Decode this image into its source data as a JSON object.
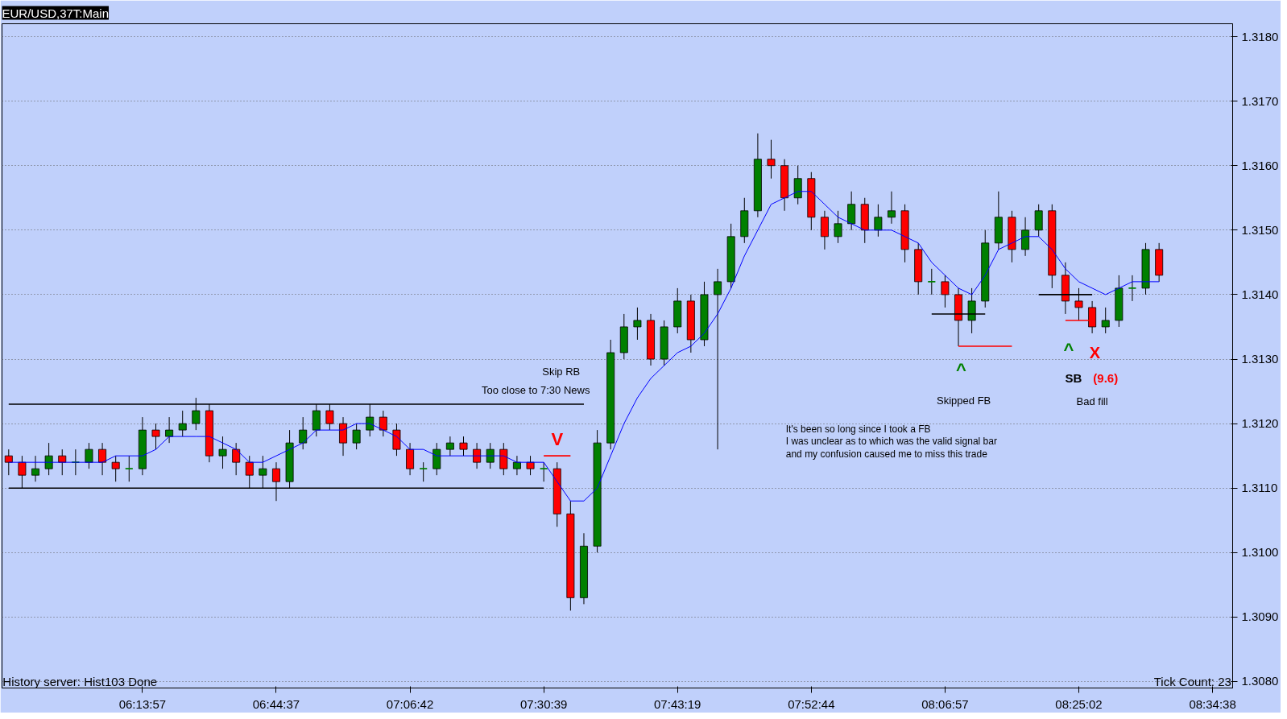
{
  "chart_data": {
    "type": "candlestick",
    "title": "EUR/USD,37T:Main",
    "ylim": [
      1.3079,
      1.3182
    ],
    "yticks": [
      {
        "value": 1.308,
        "label": "1.3080"
      },
      {
        "value": 1.309,
        "label": "1.3090"
      },
      {
        "value": 1.31,
        "label": "1.3100"
      },
      {
        "value": 1.311,
        "label": "1.3110"
      },
      {
        "value": 1.312,
        "label": "1.3120"
      },
      {
        "value": 1.313,
        "label": "1.3130"
      },
      {
        "value": 1.314,
        "label": "1.3140"
      },
      {
        "value": 1.315,
        "label": "1.3150"
      },
      {
        "value": 1.316,
        "label": "1.3160"
      },
      {
        "value": 1.317,
        "label": "1.3170"
      },
      {
        "value": 1.318,
        "label": "1.3180"
      }
    ],
    "grid": "y",
    "categories": [
      null,
      null,
      null,
      null,
      null,
      null,
      null,
      null,
      null,
      null,
      "06:13:57",
      null,
      null,
      null,
      null,
      null,
      null,
      null,
      null,
      null,
      "06:44:37",
      null,
      null,
      null,
      null,
      null,
      null,
      null,
      null,
      null,
      "07:06:42",
      null,
      null,
      null,
      null,
      null,
      null,
      null,
      null,
      null,
      "07:30:39",
      null,
      null,
      null,
      null,
      null,
      null,
      null,
      null,
      null,
      "07:43:19",
      null,
      null,
      null,
      null,
      null,
      null,
      null,
      null,
      null,
      "07:52:44",
      null,
      null,
      null,
      null,
      null,
      null,
      null,
      null,
      null,
      "08:06:57",
      null,
      null,
      null,
      null,
      null,
      null,
      null,
      null,
      null,
      "08:25:02",
      null,
      null,
      null,
      null,
      null,
      null,
      null,
      null,
      null,
      "08:34:38",
      null
    ],
    "colors": [
      "#ff0000",
      "#ff0000",
      "#008000",
      "#008000",
      "#ff0000",
      "#008000",
      "#008000",
      "#ff0000",
      "#ff0000",
      "#008000",
      "#008000",
      "#ff0000",
      "#008000",
      "#008000",
      "#008000",
      "#ff0000",
      "#008000",
      "#ff0000",
      "#ff0000",
      "#008000",
      "#ff0000",
      "#008000",
      "#008000",
      "#008000",
      "#ff0000",
      "#ff0000",
      "#008000",
      "#008000",
      "#ff0000",
      "#ff0000",
      "#ff0000",
      "#008000",
      "#008000",
      "#008000",
      "#ff0000",
      "#ff0000",
      "#008000",
      "#ff0000",
      "#008000",
      "#ff0000",
      "#008000",
      "#ff0000",
      "#ff0000",
      "#008000",
      "#008000",
      "#008000",
      "#008000",
      "#008000",
      "#ff0000",
      "#008000",
      "#008000",
      "#ff0000",
      "#008000",
      "#008000",
      "#008000",
      "#008000",
      "#008000",
      "#ff0000",
      "#ff0000",
      "#008000",
      "#ff0000",
      "#ff0000",
      "#008000",
      "#008000",
      "#ff0000",
      "#008000",
      "#008000",
      "#ff0000",
      "#ff0000",
      "#008000",
      "#ff0000",
      "#ff0000",
      "#008000",
      "#008000",
      "#008000",
      "#ff0000",
      "#008000",
      "#008000",
      "#ff0000",
      "#ff0000",
      "#ff0000",
      "#ff0000",
      "#008000",
      "#008000",
      "#008000",
      "#008000",
      "#ff0000",
      null,
      null,
      null,
      null,
      null
    ],
    "ohlc": [
      [
        1.3115,
        1.3116,
        1.3112,
        1.3114
      ],
      [
        1.3114,
        1.3115,
        1.311,
        1.3112
      ],
      [
        1.3112,
        1.3115,
        1.3111,
        1.3113
      ],
      [
        1.3113,
        1.3117,
        1.3112,
        1.3115
      ],
      [
        1.3115,
        1.3116,
        1.3112,
        1.3114
      ],
      [
        1.3114,
        1.3116,
        1.3112,
        1.3114
      ],
      [
        1.3114,
        1.3117,
        1.3113,
        1.3116
      ],
      [
        1.3116,
        1.3117,
        1.3112,
        1.3114
      ],
      [
        1.3114,
        1.3115,
        1.3111,
        1.3113
      ],
      [
        1.3113,
        1.3115,
        1.3111,
        1.3113
      ],
      [
        1.3113,
        1.3121,
        1.3112,
        1.3119
      ],
      [
        1.3119,
        1.312,
        1.3116,
        1.3118
      ],
      [
        1.3118,
        1.3121,
        1.3117,
        1.3119
      ],
      [
        1.3119,
        1.3122,
        1.3118,
        1.312
      ],
      [
        1.312,
        1.3124,
        1.3119,
        1.3122
      ],
      [
        1.3122,
        1.3123,
        1.3114,
        1.3115
      ],
      [
        1.3115,
        1.3118,
        1.3113,
        1.3116
      ],
      [
        1.3116,
        1.3117,
        1.3112,
        1.3114
      ],
      [
        1.3114,
        1.3115,
        1.311,
        1.3112
      ],
      [
        1.3112,
        1.3115,
        1.311,
        1.3113
      ],
      [
        1.3113,
        1.3114,
        1.3108,
        1.3111
      ],
      [
        1.3111,
        1.3119,
        1.311,
        1.3117
      ],
      [
        1.3117,
        1.3121,
        1.3116,
        1.3119
      ],
      [
        1.3119,
        1.3123,
        1.3118,
        1.3122
      ],
      [
        1.3122,
        1.3123,
        1.3119,
        1.312
      ],
      [
        1.312,
        1.3121,
        1.3115,
        1.3117
      ],
      [
        1.3117,
        1.312,
        1.3116,
        1.3119
      ],
      [
        1.3119,
        1.3123,
        1.3118,
        1.3121
      ],
      [
        1.3121,
        1.3122,
        1.3118,
        1.3119
      ],
      [
        1.3119,
        1.312,
        1.3115,
        1.3116
      ],
      [
        1.3116,
        1.3117,
        1.3112,
        1.3113
      ],
      [
        1.3113,
        1.3114,
        1.3111,
        1.3113
      ],
      [
        1.3113,
        1.3117,
        1.3112,
        1.3116
      ],
      [
        1.3116,
        1.3118,
        1.3115,
        1.3117
      ],
      [
        1.3117,
        1.3118,
        1.3115,
        1.3116
      ],
      [
        1.3116,
        1.3117,
        1.3113,
        1.3114
      ],
      [
        1.3114,
        1.3117,
        1.3113,
        1.3116
      ],
      [
        1.3116,
        1.3117,
        1.3112,
        1.3113
      ],
      [
        1.3113,
        1.3115,
        1.3112,
        1.3114
      ],
      [
        1.3114,
        1.3115,
        1.3112,
        1.3113
      ],
      [
        1.3113,
        1.3114,
        1.3111,
        1.3113
      ],
      [
        1.3113,
        1.3114,
        1.3104,
        1.3106
      ],
      [
        1.3106,
        1.3108,
        1.3091,
        1.3093
      ],
      [
        1.3093,
        1.3103,
        1.3092,
        1.3101
      ],
      [
        1.3101,
        1.3119,
        1.31,
        1.3117
      ],
      [
        1.3117,
        1.3133,
        1.3116,
        1.3131
      ],
      [
        1.3131,
        1.3137,
        1.313,
        1.3135
      ],
      [
        1.3135,
        1.3138,
        1.3133,
        1.3136
      ],
      [
        1.3136,
        1.3137,
        1.3129,
        1.313
      ],
      [
        1.313,
        1.3136,
        1.3129,
        1.3135
      ],
      [
        1.3135,
        1.3141,
        1.3134,
        1.3139
      ],
      [
        1.3139,
        1.314,
        1.3131,
        1.3133
      ],
      [
        1.3133,
        1.3142,
        1.3132,
        1.314
      ],
      [
        1.314,
        1.3144,
        1.3116,
        1.3142
      ],
      [
        1.3142,
        1.3151,
        1.3141,
        1.3149
      ],
      [
        1.3149,
        1.3155,
        1.3148,
        1.3153
      ],
      [
        1.3153,
        1.3165,
        1.3152,
        1.3161
      ],
      [
        1.3161,
        1.3164,
        1.3158,
        1.316
      ],
      [
        1.316,
        1.3161,
        1.3153,
        1.3155
      ],
      [
        1.3155,
        1.316,
        1.3154,
        1.3158
      ],
      [
        1.3158,
        1.3159,
        1.315,
        1.3152
      ],
      [
        1.3152,
        1.3153,
        1.3147,
        1.3149
      ],
      [
        1.3149,
        1.3153,
        1.3148,
        1.3151
      ],
      [
        1.3151,
        1.3156,
        1.315,
        1.3154
      ],
      [
        1.3154,
        1.3155,
        1.3148,
        1.315
      ],
      [
        1.315,
        1.3154,
        1.3149,
        1.3152
      ],
      [
        1.3152,
        1.3156,
        1.3151,
        1.3153
      ],
      [
        1.3153,
        1.3154,
        1.3145,
        1.3147
      ],
      [
        1.3147,
        1.3148,
        1.314,
        1.3142
      ],
      [
        1.3142,
        1.3144,
        1.314,
        1.3142
      ],
      [
        1.3142,
        1.3143,
        1.3138,
        1.314
      ],
      [
        1.314,
        1.3141,
        1.3132,
        1.3136
      ],
      [
        1.3136,
        1.3141,
        1.3134,
        1.3139
      ],
      [
        1.3139,
        1.315,
        1.3138,
        1.3148
      ],
      [
        1.3148,
        1.3156,
        1.3147,
        1.3152
      ],
      [
        1.3152,
        1.3153,
        1.3145,
        1.3147
      ],
      [
        1.3147,
        1.3152,
        1.3146,
        1.315
      ],
      [
        1.315,
        1.3154,
        1.3149,
        1.3153
      ],
      [
        1.3153,
        1.3154,
        1.3141,
        1.3143
      ],
      [
        1.3143,
        1.3145,
        1.3137,
        1.3139
      ],
      [
        1.3139,
        1.3141,
        1.3136,
        1.3138
      ],
      [
        1.3138,
        1.3139,
        1.3134,
        1.3135
      ],
      [
        1.3135,
        1.3138,
        1.3134,
        1.3136
      ],
      [
        1.3136,
        1.3143,
        1.3135,
        1.3141
      ],
      [
        1.3141,
        1.3143,
        1.3139,
        1.3141
      ],
      [
        1.3141,
        1.3148,
        1.314,
        1.3147
      ],
      [
        1.3147,
        1.3148,
        1.3142,
        1.3143
      ],
      null,
      null,
      null,
      null,
      null
    ],
    "series": [
      {
        "type": "line",
        "color": "#0000ff",
        "values": [
          1.3114,
          1.3114,
          1.3114,
          1.3114,
          1.3114,
          1.3114,
          1.3114,
          1.3114,
          1.3115,
          1.3115,
          1.3115,
          1.3116,
          1.3118,
          1.3118,
          1.3118,
          1.3118,
          1.3117,
          1.3116,
          1.3114,
          1.3114,
          1.3115,
          1.3116,
          1.3117,
          1.3119,
          1.3119,
          1.3119,
          1.312,
          1.312,
          1.3119,
          1.3118,
          1.3116,
          1.3116,
          1.3115,
          1.3115,
          1.3115,
          1.3115,
          1.3115,
          1.3115,
          1.3114,
          1.3114,
          1.3114,
          1.3111,
          1.3108,
          1.3108,
          1.311,
          1.3115,
          1.312,
          1.3124,
          1.3127,
          1.3129,
          1.3131,
          1.3132,
          1.3134,
          1.3137,
          1.3141,
          1.3146,
          1.315,
          1.3154,
          1.3155,
          1.3156,
          1.3156,
          1.3154,
          1.3152,
          1.3151,
          1.315,
          1.315,
          1.315,
          1.3149,
          1.3148,
          1.3145,
          1.3143,
          1.3141,
          1.314,
          1.3143,
          1.3147,
          1.3148,
          1.3149,
          1.3149,
          1.3147,
          1.3144,
          1.3142,
          1.3141,
          1.314,
          1.3141,
          1.3142,
          1.3142,
          1.3142,
          null,
          null,
          null,
          null,
          null
        ]
      },
      {
        "type": "line",
        "color": "#000000",
        "values": [
          1.3123,
          1.3123,
          1.3123,
          1.3123,
          1.3123,
          1.3123,
          1.3123,
          1.3123,
          1.3123,
          1.3123,
          1.3123,
          1.3123,
          1.3123,
          1.3123,
          1.3123,
          1.3123,
          1.3123,
          1.3123,
          1.3123,
          1.3123,
          1.3123,
          1.3123,
          1.3123,
          1.3123,
          1.3123,
          1.3123,
          1.3123,
          1.3123,
          1.3123,
          1.3123,
          1.3123,
          1.3123,
          1.3123,
          1.3123,
          1.3123,
          1.3123,
          1.3123,
          1.3123,
          1.3123,
          1.3123,
          1.3123,
          1.3123,
          1.3123,
          1.3123,
          null,
          null,
          null,
          null,
          null,
          null,
          null,
          null,
          null,
          null,
          null,
          null,
          null,
          null,
          null,
          null,
          null,
          null,
          null,
          null,
          null,
          null,
          null,
          null,
          null,
          null,
          null,
          null,
          null,
          null,
          null,
          null,
          null,
          null,
          null,
          null,
          null,
          null,
          null,
          null,
          null,
          null,
          null,
          null,
          null,
          null,
          null,
          null
        ]
      },
      {
        "type": "line",
        "color": "#000000",
        "values": [
          1.311,
          1.311,
          1.311,
          1.311,
          1.311,
          1.311,
          1.311,
          1.311,
          1.311,
          1.311,
          1.311,
          1.311,
          1.311,
          1.311,
          1.311,
          1.311,
          1.311,
          1.311,
          1.311,
          1.311,
          1.311,
          1.311,
          1.311,
          1.311,
          1.311,
          1.311,
          1.311,
          1.311,
          1.311,
          1.311,
          1.311,
          1.311,
          1.311,
          1.311,
          1.311,
          1.311,
          1.311,
          1.311,
          1.311,
          1.311,
          1.311,
          null,
          null,
          null,
          null,
          null,
          null,
          null,
          null,
          null,
          null,
          null,
          null,
          null,
          null,
          null,
          null,
          null,
          null,
          null,
          null,
          null,
          null,
          null,
          null,
          null,
          null,
          null,
          null,
          null,
          null,
          null,
          null,
          null,
          null,
          null,
          null,
          null,
          null,
          null,
          null,
          null,
          null,
          null,
          null,
          null,
          null,
          null,
          null,
          null,
          null,
          null
        ]
      },
      {
        "type": "line",
        "color": "#ff0000",
        "values": [
          null,
          null,
          null,
          null,
          null,
          null,
          null,
          null,
          null,
          null,
          null,
          null,
          null,
          null,
          null,
          null,
          null,
          null,
          null,
          null,
          null,
          null,
          null,
          null,
          null,
          null,
          null,
          null,
          null,
          null,
          null,
          null,
          null,
          null,
          null,
          null,
          null,
          null,
          null,
          null,
          1.3115,
          1.3115,
          1.3115,
          null,
          null,
          null,
          null,
          null,
          null,
          null,
          null,
          null,
          null,
          null,
          null,
          null,
          null,
          null,
          null,
          null,
          null,
          null,
          null,
          null,
          null,
          null,
          null,
          null,
          null,
          null,
          null,
          null,
          null,
          null,
          null,
          null,
          null,
          null,
          null,
          null,
          null,
          null,
          null,
          null,
          null,
          null,
          null,
          null,
          null,
          null,
          null,
          null
        ]
      },
      {
        "type": "line",
        "color": "#000000",
        "values": [
          null,
          null,
          null,
          null,
          null,
          null,
          null,
          null,
          null,
          null,
          null,
          null,
          null,
          null,
          null,
          null,
          null,
          null,
          null,
          null,
          null,
          null,
          null,
          null,
          null,
          null,
          null,
          null,
          null,
          null,
          null,
          null,
          null,
          null,
          null,
          null,
          null,
          null,
          null,
          null,
          null,
          null,
          null,
          null,
          null,
          null,
          null,
          null,
          null,
          null,
          null,
          null,
          null,
          null,
          null,
          null,
          null,
          null,
          null,
          null,
          null,
          null,
          null,
          null,
          null,
          null,
          null,
          null,
          null,
          1.3137,
          1.3137,
          1.3137,
          1.3137,
          1.3137,
          null,
          null,
          null,
          null,
          null,
          null,
          null,
          null,
          null,
          null,
          null,
          null,
          null,
          null,
          null,
          null,
          null,
          null
        ]
      },
      {
        "type": "line",
        "color": "#ff0000",
        "values": [
          null,
          null,
          null,
          null,
          null,
          null,
          null,
          null,
          null,
          null,
          null,
          null,
          null,
          null,
          null,
          null,
          null,
          null,
          null,
          null,
          null,
          null,
          null,
          null,
          null,
          null,
          null,
          null,
          null,
          null,
          null,
          null,
          null,
          null,
          null,
          null,
          null,
          null,
          null,
          null,
          null,
          null,
          null,
          null,
          null,
          null,
          null,
          null,
          null,
          null,
          null,
          null,
          null,
          null,
          null,
          null,
          null,
          null,
          null,
          null,
          null,
          null,
          null,
          null,
          null,
          null,
          null,
          null,
          null,
          null,
          null,
          1.3132,
          1.3132,
          1.3132,
          1.3132,
          1.3132,
          null,
          null,
          null,
          null,
          null,
          null,
          null,
          null,
          null,
          null,
          null,
          null,
          null,
          null,
          null,
          null
        ]
      },
      {
        "type": "line",
        "color": "#000000",
        "values": [
          null,
          null,
          null,
          null,
          null,
          null,
          null,
          null,
          null,
          null,
          null,
          null,
          null,
          null,
          null,
          null,
          null,
          null,
          null,
          null,
          null,
          null,
          null,
          null,
          null,
          null,
          null,
          null,
          null,
          null,
          null,
          null,
          null,
          null,
          null,
          null,
          null,
          null,
          null,
          null,
          null,
          null,
          null,
          null,
          null,
          null,
          null,
          null,
          null,
          null,
          null,
          null,
          null,
          null,
          null,
          null,
          null,
          null,
          null,
          null,
          null,
          null,
          null,
          null,
          null,
          null,
          null,
          null,
          null,
          null,
          null,
          null,
          null,
          null,
          null,
          null,
          null,
          1.314,
          1.314,
          1.314,
          1.314,
          1.314,
          null,
          null,
          null,
          null,
          null,
          null,
          null,
          null,
          null,
          null
        ]
      },
      {
        "type": "line",
        "color": "#ff0000",
        "values": [
          null,
          null,
          null,
          null,
          null,
          null,
          null,
          null,
          null,
          null,
          null,
          null,
          null,
          null,
          null,
          null,
          null,
          null,
          null,
          null,
          null,
          null,
          null,
          null,
          null,
          null,
          null,
          null,
          null,
          null,
          null,
          null,
          null,
          null,
          null,
          null,
          null,
          null,
          null,
          null,
          null,
          null,
          null,
          null,
          null,
          null,
          null,
          null,
          null,
          null,
          null,
          null,
          null,
          null,
          null,
          null,
          null,
          null,
          null,
          null,
          null,
          null,
          null,
          null,
          null,
          null,
          null,
          null,
          null,
          null,
          null,
          null,
          null,
          null,
          null,
          null,
          null,
          null,
          null,
          1.3136,
          1.3136,
          1.3136,
          null,
          null,
          null,
          null,
          null,
          null,
          null,
          null,
          null,
          null
        ]
      }
    ],
    "annotations": [
      "Skip RB",
      "Too close to 7:30 News",
      "V",
      "^",
      "Skipped FB",
      "^",
      "X",
      "SB",
      "(9.6)",
      "Bad fill",
      "It's been so long since I took a FB",
      "I was unclear as to which was the valid signal bar",
      "and my confusion caused me to miss this trade",
      "History server: Hist103 Done",
      "Tick Count: 23"
    ]
  }
}
